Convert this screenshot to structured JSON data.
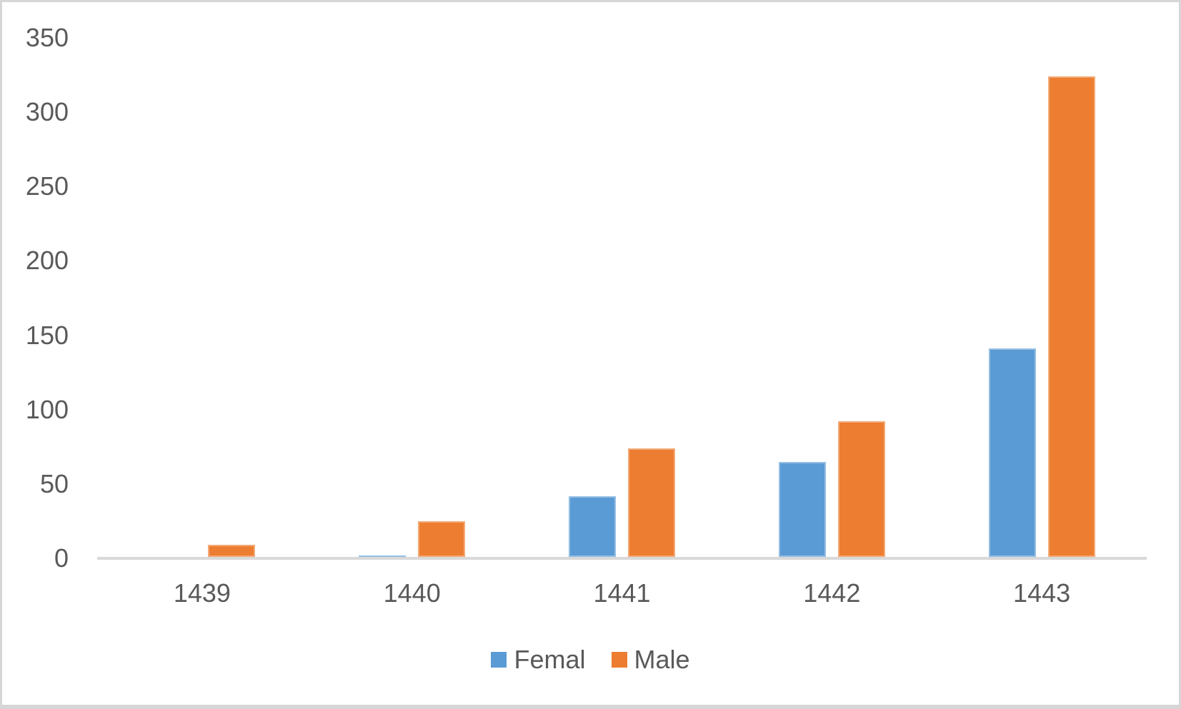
{
  "chart_data": {
    "type": "bar",
    "title": "",
    "xlabel": "",
    "ylabel": "",
    "categories": [
      "1439",
      "1440",
      "1441",
      "1442",
      "1443"
    ],
    "series": [
      {
        "name": "Femal",
        "color": "#5B9BD5",
        "values": [
          0,
          1,
          41,
          64,
          140
        ]
      },
      {
        "name": "Male",
        "color": "#ED7D31",
        "values": [
          8,
          24,
          73,
          91,
          323
        ]
      }
    ],
    "ylim": [
      0,
      350
    ],
    "yticks": [
      0,
      50,
      100,
      150,
      200,
      250,
      300,
      350
    ],
    "grid": false,
    "legend_position": "bottom"
  },
  "legend": {
    "items": [
      {
        "label": "Femal",
        "color": "#5B9BD5"
      },
      {
        "label": "Male",
        "color": "#ED7D31"
      }
    ]
  },
  "style_colors": {
    "axis_line": "#D9D9D9",
    "text": "#595959",
    "background": "#FFFFFF",
    "frame_border": "#D6D6D6"
  }
}
